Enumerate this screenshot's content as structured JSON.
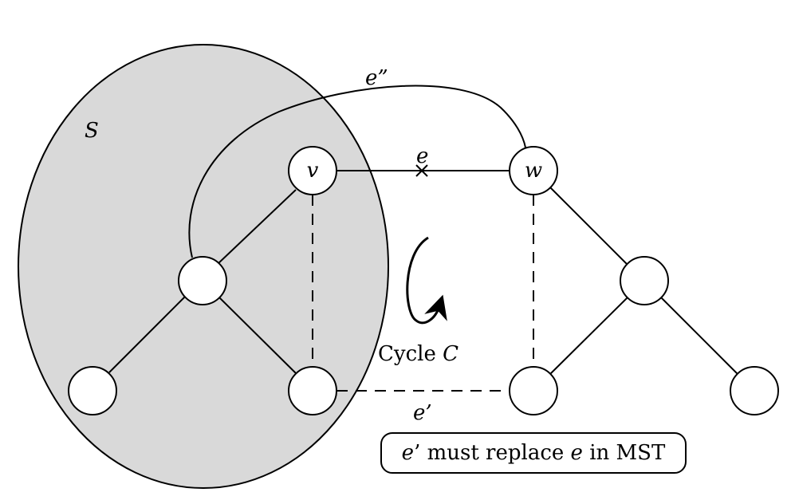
{
  "colors": {
    "set_fill": "#d9d9d9",
    "stroke": "#000000",
    "node_fill": "#ffffff",
    "background": "#ffffff"
  },
  "diagram": {
    "set_label": "S",
    "nodes": {
      "v": {
        "label": "v"
      },
      "w": {
        "label": "w"
      },
      "left_middle": {
        "label": ""
      },
      "left_bottom_left": {
        "label": ""
      },
      "left_bottom_right": {
        "label": ""
      },
      "right_middle": {
        "label": ""
      },
      "right_bottom_left": {
        "label": ""
      },
      "right_bottom_right": {
        "label": ""
      }
    },
    "edges": {
      "e": {
        "label": "e",
        "marker": "×"
      },
      "e_prime": {
        "label": "e’"
      },
      "e_double_prime": {
        "label": "e”"
      }
    },
    "cycle": {
      "label_prefix": "Cycle ",
      "label_var": "C"
    },
    "note": {
      "part1": "e",
      "part2": "’ must replace ",
      "part3": "e",
      "part4": " in MST"
    }
  }
}
